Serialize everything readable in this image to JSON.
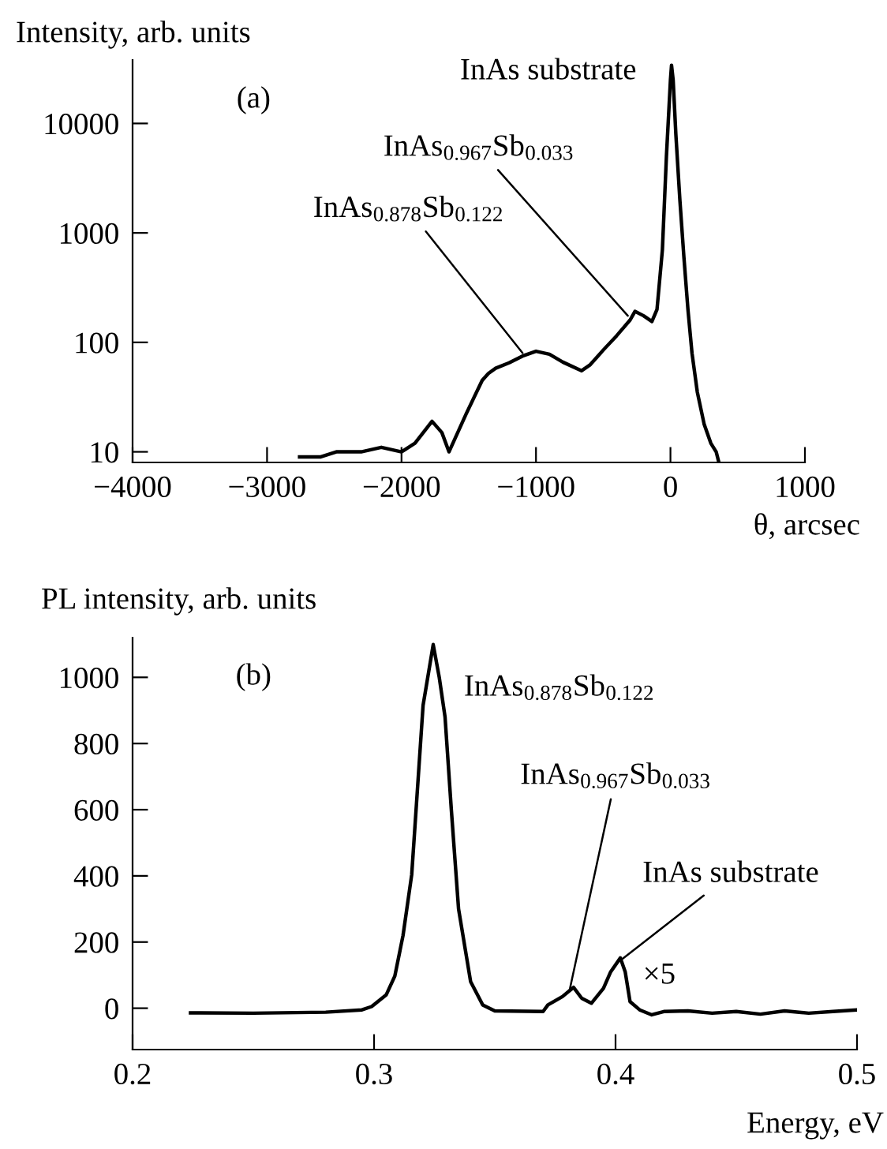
{
  "chart_data": [
    {
      "type": "line",
      "xlabel": "θ, arcsec",
      "ylabel": "Intensity, arb. units",
      "log": "y",
      "xlim": [
        -4000,
        1000
      ],
      "xticks": [
        {
          "value": -4000,
          "label": "−4000"
        },
        {
          "value": -3000,
          "label": "−3000"
        },
        {
          "value": -2000,
          "label": "−2000"
        },
        {
          "value": -1000,
          "label": "−1000"
        },
        0,
        1000
      ],
      "ylim": [
        8,
        38000
      ],
      "yticks": [
        10,
        100,
        1000,
        10000
      ],
      "grid": false,
      "legend": false,
      "marker": "none",
      "line_style": "solid",
      "series": [
        {
          "color": "#000000",
          "x": [
            -2758,
            -2600,
            -2485,
            -2300,
            -2150,
            -2000,
            -1900,
            -1773,
            -1700,
            -1647,
            -1521,
            -1400,
            -1354,
            -1300,
            -1200,
            -1100,
            -1000,
            -900,
            -800,
            -662,
            -600,
            -500,
            -400,
            -300,
            -264,
            -200,
            -138,
            -100,
            -60,
            -30,
            0,
            8,
            20,
            40,
            70,
            100,
            130,
            160,
            200,
            250,
            300,
            340,
            360
          ],
          "values": [
            9,
            9,
            10,
            10,
            11,
            10,
            12,
            19,
            15,
            10,
            22,
            45,
            52,
            58,
            65,
            75,
            83,
            78,
            66,
            55,
            62,
            85,
            115,
            160,
            192,
            175,
            155,
            200,
            700,
            5000,
            25000,
            34000,
            25000,
            8000,
            2000,
            600,
            200,
            80,
            35,
            18,
            12,
            10,
            8
          ]
        }
      ],
      "annotations": [
        "(a)",
        {
          "text": "InAs substrate",
          "x": 8,
          "y": 34000
        },
        {
          "text": "InAs$_{0.967}$Sb$_{0.033}$",
          "x": -317,
          "y": 175
        },
        {
          "text": "InAs$_{0.878}$Sb$_{0.122}$",
          "x": -1100,
          "y": 80
        }
      ]
    },
    {
      "type": "line",
      "xlabel": "Energy, eV",
      "ylabel": "PL intensity, arb. units",
      "xlim": [
        0.2,
        0.5
      ],
      "xticks": [
        0.2,
        0.3,
        0.4,
        0.5
      ],
      "ylim": [
        -125,
        1120
      ],
      "yticks": [
        0,
        200,
        400,
        600,
        800,
        1000
      ],
      "grid": false,
      "legend": false,
      "marker": "none",
      "line_style": "solid",
      "series": [
        {
          "color": "#000000",
          "x": [
            0.224,
            0.25,
            0.28,
            0.295,
            0.299,
            0.305,
            0.3086,
            0.312,
            0.3156,
            0.3203,
            0.3245,
            0.327,
            0.3294,
            0.332,
            0.335,
            0.34,
            0.345,
            0.35,
            0.37,
            0.372,
            0.378,
            0.3826,
            0.386,
            0.39,
            0.395,
            0.398,
            0.402,
            0.404,
            0.406,
            0.41,
            0.415,
            0.42,
            0.43,
            0.44,
            0.45,
            0.46,
            0.47,
            0.48,
            0.49,
            0.5
          ],
          "values": [
            -14,
            -15,
            -12,
            -5,
            5,
            40,
            97,
            220,
            404,
            915,
            1099,
            1000,
            880,
            600,
            300,
            80,
            10,
            -8,
            -10,
            10,
            35,
            63,
            30,
            15,
            60,
            110,
            152,
            110,
            20,
            -5,
            -20,
            -10,
            -8,
            -15,
            -10,
            -18,
            -8,
            -15,
            -10,
            -5
          ]
        }
      ],
      "annotations": [
        "(b)",
        "×5",
        {
          "text": "InAs$_{0.878}$Sb$_{0.122}$",
          "x": 0.3245,
          "y": 1099
        },
        {
          "text": "InAs$_{0.967}$Sb$_{0.033}$",
          "x": 0.381,
          "y": 55
        },
        {
          "text": "InAs substrate",
          "x": 0.403,
          "y": 150
        }
      ]
    }
  ]
}
